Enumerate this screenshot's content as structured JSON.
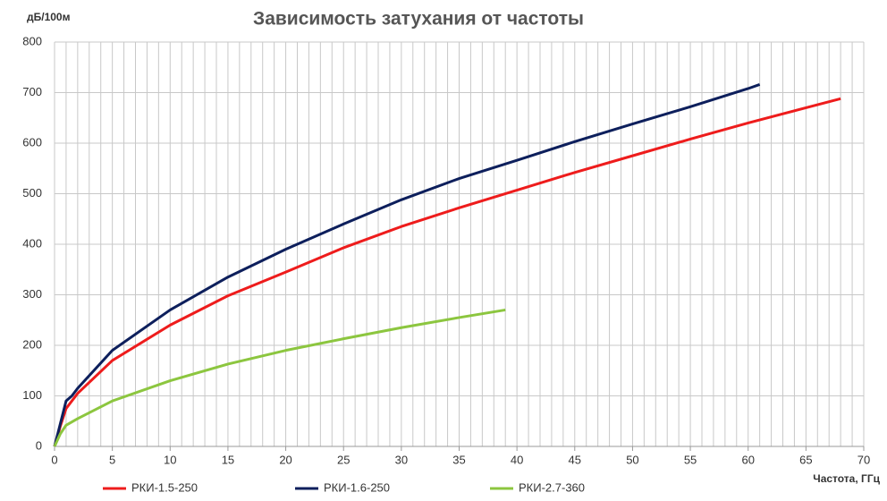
{
  "chart_data": {
    "type": "line",
    "title": "Зависимость затухания от частоты",
    "y_label": "дБ/100м",
    "x_label": "Частота, ГГц",
    "xlim": [
      0,
      70
    ],
    "xticks": [
      0,
      5,
      10,
      15,
      20,
      25,
      30,
      35,
      40,
      45,
      50,
      55,
      60,
      65,
      70
    ],
    "ylim": [
      0,
      800
    ],
    "yticks": [
      0,
      100,
      200,
      300,
      400,
      500,
      600,
      700,
      800
    ],
    "grid": true,
    "x_grid_step": 1,
    "legend": "bottom",
    "series": [
      {
        "name": "РКИ-1.5-250",
        "color": "#ee1c1c",
        "x": [
          0,
          0.5,
          1,
          2,
          5,
          10,
          15,
          20,
          25,
          30,
          35,
          40,
          45,
          50,
          55,
          60,
          65,
          68
        ],
        "values": [
          0,
          40,
          75,
          105,
          170,
          240,
          298,
          345,
          393,
          435,
          472,
          507,
          542,
          575,
          608,
          640,
          670,
          688
        ]
      },
      {
        "name": "РКИ-1.6-250",
        "color": "#0d1f5c",
        "x": [
          0,
          0.5,
          1,
          1.5,
          2,
          5,
          10,
          15,
          20,
          25,
          30,
          35,
          40,
          45,
          50,
          55,
          60,
          61
        ],
        "values": [
          0,
          45,
          90,
          100,
          115,
          190,
          270,
          335,
          390,
          440,
          488,
          530,
          566,
          603,
          638,
          672,
          708,
          716
        ]
      },
      {
        "name": "РКИ-2.7-360",
        "color": "#8cc63f",
        "x": [
          0,
          0.5,
          1,
          2,
          5,
          10,
          15,
          20,
          25,
          30,
          35,
          39
        ],
        "values": [
          0,
          25,
          42,
          55,
          90,
          130,
          163,
          190,
          213,
          235,
          255,
          270
        ]
      }
    ]
  }
}
